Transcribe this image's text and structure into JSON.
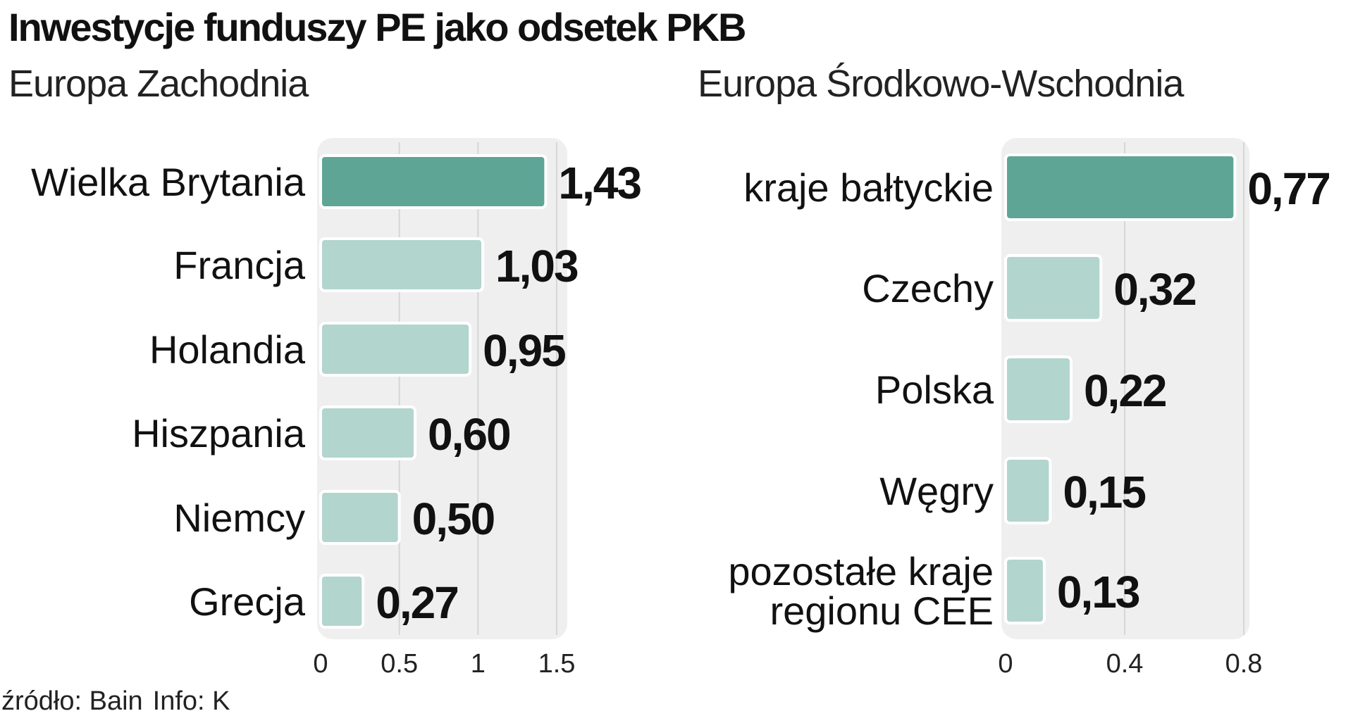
{
  "title": "Inwestycje funduszy PE jako odsetek PKB",
  "footer": {
    "source": "źródło: Bain",
    "info": "Info: K"
  },
  "colors": {
    "highlight": "#5ea596",
    "bar": "#b2d5ce",
    "panel": "#efefef",
    "gridline": "#d6d6d6"
  },
  "chart_data": [
    {
      "type": "bar",
      "orientation": "horizontal",
      "subtitle": "Europa Zachodnia",
      "categories": [
        "Wielka Brytania",
        "Francja",
        "Holandia",
        "Hiszpania",
        "Niemcy",
        "Grecja"
      ],
      "values": [
        1.43,
        1.03,
        0.95,
        0.6,
        0.5,
        0.27
      ],
      "value_labels": [
        "1,43",
        "1,03",
        "0,95",
        "0,60",
        "0,50",
        "0,27"
      ],
      "highlight_index": 0,
      "xlim": [
        0,
        1.5
      ],
      "ticks": [
        0,
        0.5,
        1,
        1.5
      ],
      "tick_labels": [
        "0",
        "0.5",
        "1",
        "1.5"
      ],
      "grid": true
    },
    {
      "type": "bar",
      "orientation": "horizontal",
      "subtitle": "Europa Środkowo-Wschodnia",
      "categories": [
        "kraje bałtyckie",
        "Czechy",
        "Polska",
        "Węgry",
        "pozostałe kraje regionu CEE"
      ],
      "category_lines": [
        [
          "kraje bałtyckie"
        ],
        [
          "Czechy"
        ],
        [
          "Polska"
        ],
        [
          "Węgry"
        ],
        [
          "pozostałe kraje",
          "regionu CEE"
        ]
      ],
      "values": [
        0.77,
        0.32,
        0.22,
        0.15,
        0.13
      ],
      "value_labels": [
        "0,77",
        "0,32",
        "0,22",
        "0,15",
        "0,13"
      ],
      "highlight_index": 0,
      "xlim": [
        0,
        0.8
      ],
      "ticks": [
        0,
        0.4,
        0.8
      ],
      "tick_labels": [
        "0",
        "0.4",
        "0.8"
      ],
      "grid": true
    }
  ]
}
